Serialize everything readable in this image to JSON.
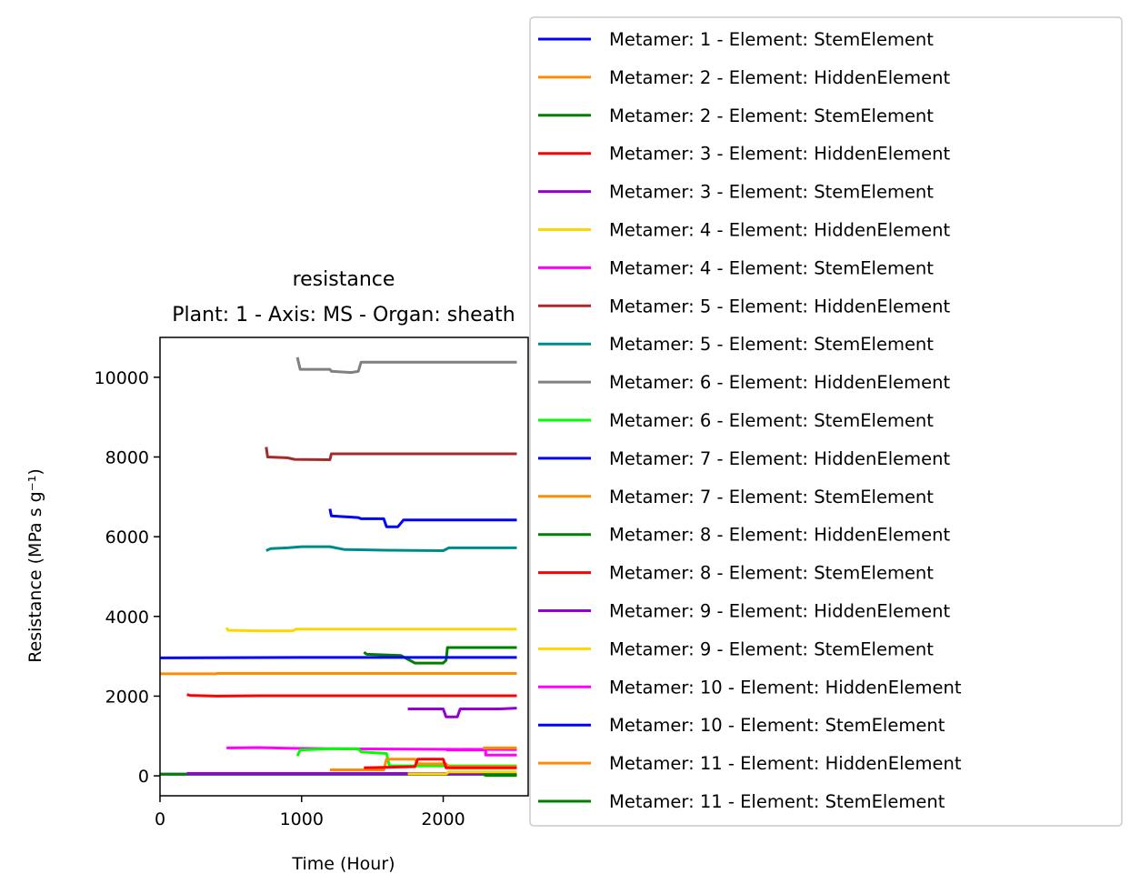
{
  "chart_data": {
    "type": "line",
    "title": "resistance",
    "subtitle": "Plant: 1 - Axis: MS - Organ: sheath",
    "xlabel": "Time (Hour)",
    "ylabel": "Resistance (MPa s g⁻¹)",
    "xlim": [
      0,
      2600
    ],
    "ylim": [
      -500,
      11000
    ],
    "xticks": [
      0,
      1000,
      2000
    ],
    "yticks": [
      0,
      2000,
      4000,
      6000,
      8000,
      10000
    ],
    "grid": false,
    "legend_position": "right, outside plot area",
    "series": [
      {
        "name": "Metamer: 1 - Element: StemElement",
        "color": "#0000ff",
        "points": [
          [
            0,
            40
          ],
          [
            2520,
            40
          ]
        ]
      },
      {
        "name": "Metamer: 2 - Element: HiddenElement",
        "color": "#ff8c00",
        "points": [
          [
            0,
            2560
          ],
          [
            400,
            2560
          ],
          [
            400,
            2570
          ],
          [
            2520,
            2570
          ]
        ]
      },
      {
        "name": "Metamer: 2 - Element: StemElement",
        "color": "#008000",
        "points": [
          [
            0,
            40
          ],
          [
            2300,
            40
          ],
          [
            2300,
            10
          ],
          [
            2520,
            10
          ]
        ]
      },
      {
        "name": "Metamer: 3 - Element: HiddenElement",
        "color": "#ff0000",
        "points": [
          [
            190,
            2040
          ],
          [
            210,
            2020
          ],
          [
            400,
            2000
          ],
          [
            700,
            2010
          ],
          [
            2520,
            2010
          ]
        ]
      },
      {
        "name": "Metamer: 3 - Element: StemElement",
        "color": "#9400d3",
        "points": [
          [
            190,
            60
          ],
          [
            1000,
            60
          ],
          [
            2520,
            60
          ]
        ]
      },
      {
        "name": "Metamer: 4 - Element: HiddenElement",
        "color": "#ffd700",
        "points": [
          [
            470,
            3720
          ],
          [
            480,
            3650
          ],
          [
            700,
            3640
          ],
          [
            940,
            3640
          ],
          [
            960,
            3680
          ],
          [
            2520,
            3680
          ]
        ]
      },
      {
        "name": "Metamer: 4 - Element: StemElement",
        "color": "#ff00ff",
        "points": [
          [
            470,
            700
          ],
          [
            700,
            710
          ],
          [
            900,
            690
          ],
          [
            1200,
            680
          ],
          [
            2520,
            660
          ]
        ]
      },
      {
        "name": "Metamer: 5 - Element: HiddenElement",
        "color": "#a52a2a",
        "points": [
          [
            750,
            8250
          ],
          [
            760,
            8000
          ],
          [
            900,
            7980
          ],
          [
            950,
            7940
          ],
          [
            1200,
            7930
          ],
          [
            1210,
            8080
          ],
          [
            2520,
            8080
          ]
        ]
      },
      {
        "name": "Metamer: 5 - Element: StemElement",
        "color": "#008b8b",
        "points": [
          [
            750,
            5650
          ],
          [
            780,
            5700
          ],
          [
            900,
            5720
          ],
          [
            1000,
            5750
          ],
          [
            1200,
            5750
          ],
          [
            1300,
            5680
          ],
          [
            1600,
            5660
          ],
          [
            2000,
            5650
          ],
          [
            2040,
            5720
          ],
          [
            2520,
            5720
          ]
        ]
      },
      {
        "name": "Metamer: 6 - Element: HiddenElement",
        "color": "#808080",
        "points": [
          [
            970,
            10500
          ],
          [
            990,
            10200
          ],
          [
            1200,
            10200
          ],
          [
            1210,
            10150
          ],
          [
            1350,
            10120
          ],
          [
            1400,
            10150
          ],
          [
            1420,
            10380
          ],
          [
            2520,
            10380
          ]
        ]
      },
      {
        "name": "Metamer: 6 - Element: StemElement",
        "color": "#00ff00",
        "points": [
          [
            970,
            500
          ],
          [
            990,
            650
          ],
          [
            1200,
            680
          ],
          [
            1400,
            680
          ],
          [
            1420,
            600
          ],
          [
            1600,
            560
          ],
          [
            1620,
            250
          ],
          [
            2520,
            250
          ]
        ]
      },
      {
        "name": "Metamer: 7 - Element: HiddenElement",
        "color": "#0000ff",
        "points": [
          [
            1200,
            6700
          ],
          [
            1210,
            6520
          ],
          [
            1400,
            6480
          ],
          [
            1420,
            6450
          ],
          [
            1580,
            6450
          ],
          [
            1600,
            6250
          ],
          [
            1680,
            6250
          ],
          [
            1720,
            6420
          ],
          [
            2520,
            6420
          ]
        ]
      },
      {
        "name": "Metamer: 7 - Element: StemElement",
        "color": "#ff8c00",
        "points": [
          [
            1200,
            150
          ],
          [
            1580,
            150
          ],
          [
            1600,
            420
          ],
          [
            1800,
            420
          ],
          [
            1820,
            300
          ],
          [
            2020,
            300
          ],
          [
            2040,
            230
          ],
          [
            2520,
            230
          ]
        ]
      },
      {
        "name": "Metamer: 8 - Element: HiddenElement",
        "color": "#008000",
        "points": [
          [
            1440,
            3100
          ],
          [
            1460,
            3050
          ],
          [
            1700,
            3020
          ],
          [
            1800,
            2830
          ],
          [
            2000,
            2830
          ],
          [
            2020,
            2900
          ],
          [
            2030,
            3220
          ],
          [
            2520,
            3220
          ]
        ]
      },
      {
        "name": "Metamer: 8 - Element: StemElement",
        "color": "#ff0000",
        "points": [
          [
            1440,
            200
          ],
          [
            1800,
            230
          ],
          [
            1820,
            420
          ],
          [
            2000,
            420
          ],
          [
            2020,
            200
          ],
          [
            2520,
            200
          ]
        ]
      },
      {
        "name": "Metamer: 9 - Element: HiddenElement",
        "color": "#9400d3",
        "points": [
          [
            1750,
            1680
          ],
          [
            2000,
            1680
          ],
          [
            2020,
            1480
          ],
          [
            2100,
            1480
          ],
          [
            2120,
            1680
          ],
          [
            2400,
            1680
          ],
          [
            2520,
            1700
          ]
        ]
      },
      {
        "name": "Metamer: 9 - Element: StemElement",
        "color": "#ffd700",
        "points": [
          [
            1750,
            50
          ],
          [
            2020,
            50
          ],
          [
            2040,
            100
          ],
          [
            2520,
            100
          ]
        ]
      },
      {
        "name": "Metamer: 10 - Element: HiddenElement",
        "color": "#ff00ff",
        "points": [
          [
            2020,
            650
          ],
          [
            2300,
            650
          ],
          [
            2300,
            520
          ],
          [
            2520,
            520
          ]
        ]
      },
      {
        "name": "Metamer: 10 - Element: StemElement",
        "color": "#0000ff",
        "points": [
          [
            0,
            2960
          ],
          [
            1000,
            2970
          ],
          [
            2520,
            2970
          ]
        ]
      },
      {
        "name": "Metamer: 11 - Element: HiddenElement",
        "color": "#ff8c00",
        "points": [
          [
            2280,
            700
          ],
          [
            2520,
            700
          ]
        ]
      },
      {
        "name": "Metamer: 11 - Element: StemElement",
        "color": "#008000",
        "points": [
          [
            2280,
            30
          ],
          [
            2520,
            30
          ]
        ]
      }
    ]
  }
}
